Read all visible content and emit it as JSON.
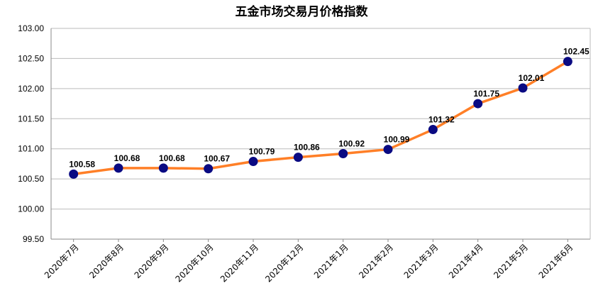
{
  "chart_data": {
    "type": "line",
    "title": "五金市场交易月价格指数",
    "xlabel": "",
    "ylabel": "",
    "categories": [
      "2020年7月",
      "2020年8月",
      "2020年9月",
      "2020年10月",
      "2020年11月",
      "2020年12月",
      "2021年1月",
      "2021年2月",
      "2021年3月",
      "2021年4月",
      "2021年5月",
      "2021年6月"
    ],
    "values": [
      100.58,
      100.68,
      100.68,
      100.67,
      100.79,
      100.86,
      100.92,
      100.99,
      101.32,
      101.75,
      102.01,
      102.45
    ],
    "value_labels": [
      "100.58",
      "100.68",
      "100.68",
      "100.67",
      "100.79",
      "100.86",
      "100.92",
      "100.99",
      "101.32",
      "101.75",
      "102.01",
      "102.45"
    ],
    "yticks": [
      "99.50",
      "100.00",
      "100.50",
      "101.00",
      "101.50",
      "102.00",
      "102.50",
      "103.00"
    ],
    "ylim": [
      99.5,
      103.0
    ],
    "grid": true,
    "legend": "none",
    "line_color": "#FF7F27",
    "marker_color": "#0A0A82",
    "grid_color": "#BBBBBB"
  }
}
